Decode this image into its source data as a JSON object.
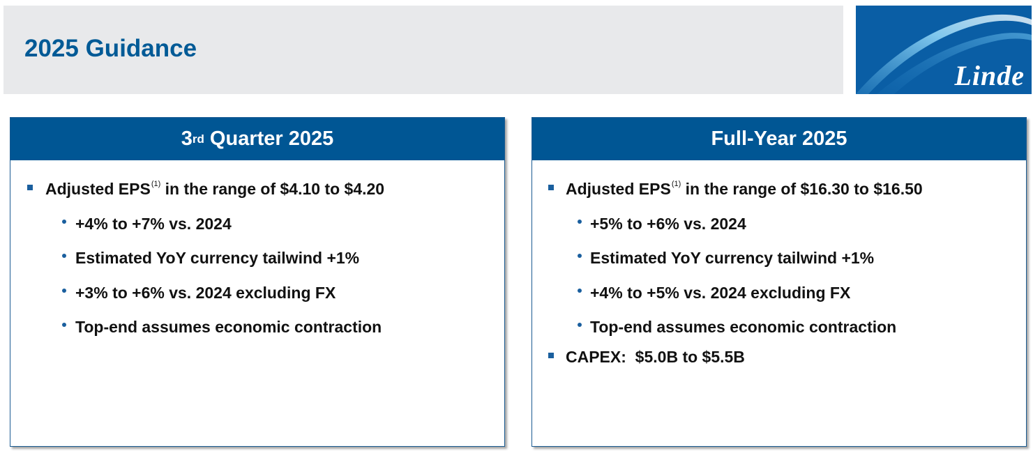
{
  "header": {
    "title": "2025 Guidance",
    "logo_text": "Linde",
    "logo_color": "#0a5ea5"
  },
  "panels": [
    {
      "title_pre": "3",
      "title_sup": "rd",
      "title_post": " Quarter 2025",
      "main_bullet": {
        "text_pre": "Adjusted EPS",
        "sup": "(1)",
        "text_post": " in the range of $4.10 to $4.20"
      },
      "sub_bullets": [
        "+4% to +7% vs. 2024",
        "Estimated YoY currency tailwind +1%",
        "+3% to +6% vs. 2024 excluding FX",
        "Top-end assumes economic contraction"
      ]
    },
    {
      "title": "Full-Year 2025",
      "main_bullet": {
        "text_pre": "Adjusted EPS",
        "sup": "(1)",
        "text_post": " in the range of $16.30 to $16.50"
      },
      "sub_bullets": [
        "+5% to +6% vs. 2024",
        "Estimated YoY currency tailwind +1%",
        "+4% to +5% vs. 2024 excluding FX",
        "Top-end assumes economic contraction"
      ],
      "second_bullet": "CAPEX:  $5.0B to $5.5B"
    }
  ],
  "colors": {
    "title_blue": "#005a96",
    "header_blue": "#005694",
    "bullet_blue": "#1a5f9e",
    "title_bar_gray": "#e8e9eb"
  }
}
